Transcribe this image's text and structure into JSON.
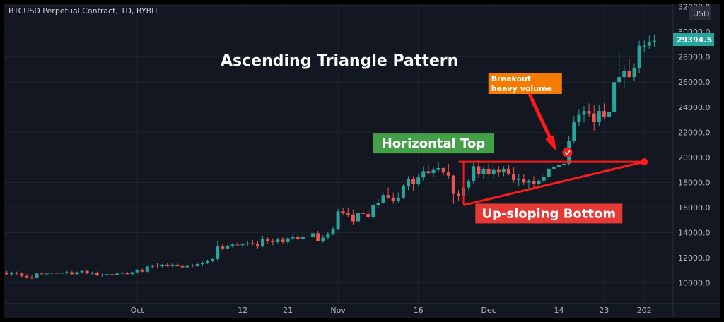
{
  "header": {
    "symbol": "BTCUSD Perpetual Contract, 1D, BYBIT",
    "currency": "USD"
  },
  "price_badge": "29394.5",
  "chart_data": {
    "type": "candlestick",
    "title": "Ascending Triangle Pattern",
    "x_ticks": [
      {
        "i": 26,
        "label": "Oct"
      },
      {
        "i": 47,
        "label": "12"
      },
      {
        "i": 56,
        "label": "21"
      },
      {
        "i": 66,
        "label": "Nov"
      },
      {
        "i": 82,
        "label": "16"
      },
      {
        "i": 96,
        "label": "Dec"
      },
      {
        "i": 110,
        "label": "14"
      },
      {
        "i": 119,
        "label": "23"
      },
      {
        "i": 127,
        "label": "202"
      }
    ],
    "y_ticks": [
      10000,
      12000,
      14000,
      16000,
      18000,
      20000,
      22000,
      24000,
      26000,
      28000,
      30000,
      32000
    ],
    "y_tick_labels": [
      "10000.0",
      "12000.0",
      "14000.0",
      "16000.0",
      "18000.0",
      "20000.0",
      "22000.0",
      "24000.0",
      "26000.0",
      "28000.0",
      "30000.0",
      "32000.0"
    ],
    "ylim": [
      8350,
      32200
    ],
    "up_color": "#26a69a",
    "down_color": "#ef5350",
    "ohlc": [
      [
        10800,
        10950,
        10650,
        10700
      ],
      [
        10700,
        10900,
        10550,
        10800
      ],
      [
        10800,
        10900,
        10600,
        10750
      ],
      [
        10750,
        10850,
        10450,
        10550
      ],
      [
        10550,
        10700,
        10350,
        10450
      ],
      [
        10450,
        10600,
        10300,
        10400
      ],
      [
        10400,
        10800,
        10350,
        10750
      ],
      [
        10750,
        10900,
        10600,
        10700
      ],
      [
        10700,
        10850,
        10550,
        10750
      ],
      [
        10750,
        10900,
        10650,
        10800
      ],
      [
        10800,
        10950,
        10650,
        10750
      ],
      [
        10750,
        10900,
        10600,
        10800
      ],
      [
        10800,
        10950,
        10700,
        10850
      ],
      [
        10850,
        10950,
        10650,
        10700
      ],
      [
        10700,
        10900,
        10600,
        10850
      ],
      [
        10850,
        11050,
        10750,
        10950
      ],
      [
        10950,
        11000,
        10700,
        10750
      ],
      [
        10750,
        10900,
        10600,
        10800
      ],
      [
        10800,
        10900,
        10550,
        10600
      ],
      [
        10600,
        10750,
        10500,
        10650
      ],
      [
        10650,
        10800,
        10550,
        10700
      ],
      [
        10700,
        10850,
        10600,
        10650
      ],
      [
        10650,
        10850,
        10550,
        10750
      ],
      [
        10750,
        10900,
        10650,
        10800
      ],
      [
        10800,
        10900,
        10650,
        10700
      ],
      [
        10700,
        10900,
        10600,
        10850
      ],
      [
        10850,
        11100,
        10750,
        11000
      ],
      [
        11000,
        11150,
        10850,
        10900
      ],
      [
        10900,
        11400,
        10850,
        11300
      ],
      [
        11300,
        11450,
        11150,
        11400
      ],
      [
        11400,
        11600,
        11200,
        11350
      ],
      [
        11350,
        11500,
        11200,
        11450
      ],
      [
        11450,
        11600,
        11300,
        11400
      ],
      [
        11400,
        11550,
        11250,
        11450
      ],
      [
        11450,
        11600,
        11300,
        11350
      ],
      [
        11350,
        11450,
        11150,
        11250
      ],
      [
        11250,
        11450,
        11200,
        11400
      ],
      [
        11400,
        11500,
        11250,
        11350
      ],
      [
        11350,
        11550,
        11300,
        11500
      ],
      [
        11500,
        11700,
        11400,
        11600
      ],
      [
        11600,
        11850,
        11500,
        11750
      ],
      [
        11750,
        12000,
        11650,
        11900
      ],
      [
        11900,
        13300,
        11800,
        12900
      ],
      [
        12900,
        13100,
        12600,
        12750
      ],
      [
        12750,
        13050,
        12650,
        12950
      ],
      [
        12950,
        13200,
        12800,
        13050
      ],
      [
        13050,
        13250,
        12900,
        13000
      ],
      [
        13000,
        13200,
        12850,
        13100
      ],
      [
        13100,
        13300,
        12950,
        13150
      ],
      [
        13150,
        13400,
        13000,
        13100
      ],
      [
        13100,
        13300,
        12700,
        12900
      ],
      [
        12900,
        13750,
        12850,
        13500
      ],
      [
        13500,
        13700,
        13150,
        13300
      ],
      [
        13300,
        13550,
        13000,
        13250
      ],
      [
        13250,
        13600,
        13100,
        13450
      ],
      [
        13450,
        13650,
        13100,
        13250
      ],
      [
        13250,
        13700,
        13050,
        13550
      ],
      [
        13550,
        13900,
        13400,
        13650
      ],
      [
        13650,
        13800,
        13400,
        13500
      ],
      [
        13500,
        13800,
        13300,
        13700
      ],
      [
        13700,
        14000,
        13500,
        13650
      ],
      [
        13650,
        14100,
        13550,
        13950
      ],
      [
        13950,
        14150,
        13500,
        13300
      ],
      [
        13300,
        13800,
        13200,
        13600
      ],
      [
        13600,
        14100,
        13450,
        13900
      ],
      [
        13900,
        14500,
        13800,
        14300
      ],
      [
        14300,
        15900,
        14200,
        15700
      ],
      [
        15700,
        15950,
        15400,
        15600
      ],
      [
        15600,
        16000,
        15250,
        15450
      ],
      [
        15450,
        15850,
        14600,
        14900
      ],
      [
        14900,
        15800,
        14700,
        15600
      ],
      [
        15600,
        15900,
        15300,
        15500
      ],
      [
        15500,
        15850,
        15100,
        15250
      ],
      [
        15250,
        16350,
        15100,
        16200
      ],
      [
        16200,
        16700,
        15900,
        16400
      ],
      [
        16400,
        17200,
        16300,
        17000
      ],
      [
        17000,
        17600,
        16700,
        16800
      ],
      [
        16800,
        17200,
        16300,
        16550
      ],
      [
        16550,
        17200,
        16350,
        16800
      ],
      [
        16800,
        17850,
        16700,
        17700
      ],
      [
        17700,
        18500,
        17400,
        18300
      ],
      [
        18300,
        18500,
        17300,
        17900
      ],
      [
        17900,
        18700,
        17700,
        18400
      ],
      [
        18400,
        19300,
        18100,
        18900
      ],
      [
        18900,
        19400,
        18600,
        18750
      ],
      [
        18750,
        19250,
        18400,
        19000
      ],
      [
        19000,
        19600,
        18800,
        19150
      ],
      [
        19150,
        19200,
        18600,
        18800
      ],
      [
        18800,
        19500,
        18300,
        18550
      ],
      [
        18550,
        18600,
        16300,
        17100
      ],
      [
        17100,
        17400,
        16500,
        16900
      ],
      [
        16900,
        17800,
        16700,
        17600
      ],
      [
        17600,
        18300,
        17400,
        18100
      ],
      [
        18100,
        19700,
        17900,
        19300
      ],
      [
        19300,
        19800,
        18400,
        18700
      ],
      [
        18700,
        19300,
        18300,
        19100
      ],
      [
        19100,
        19500,
        18600,
        18700
      ],
      [
        18700,
        19200,
        18300,
        19000
      ],
      [
        19000,
        19300,
        18500,
        18800
      ],
      [
        18800,
        19300,
        18500,
        19100
      ],
      [
        19100,
        19400,
        18600,
        18700
      ],
      [
        18700,
        19200,
        18000,
        18200
      ],
      [
        18200,
        18700,
        17700,
        18300
      ],
      [
        18300,
        18700,
        17800,
        18000
      ],
      [
        18000,
        18300,
        17500,
        18100
      ],
      [
        18100,
        18500,
        17600,
        17900
      ],
      [
        17900,
        18300,
        17600,
        18150
      ],
      [
        18150,
        18600,
        18000,
        18450
      ],
      [
        18450,
        19300,
        18300,
        19100
      ],
      [
        19100,
        19400,
        18900,
        19250
      ],
      [
        19250,
        19600,
        19000,
        19400
      ],
      [
        19400,
        19650,
        19200,
        19500
      ],
      [
        19500,
        21700,
        19350,
        21300
      ],
      [
        21300,
        23300,
        21100,
        22800
      ],
      [
        22800,
        23800,
        22500,
        23400
      ],
      [
        23400,
        24100,
        22800,
        23700
      ],
      [
        23700,
        24300,
        23200,
        23500
      ],
      [
        23500,
        24200,
        22100,
        22800
      ],
      [
        22800,
        24200,
        22500,
        23700
      ],
      [
        23700,
        24300,
        23100,
        23200
      ],
      [
        23200,
        23700,
        22600,
        23600
      ],
      [
        23600,
        26300,
        23400,
        26000
      ],
      [
        26000,
        28500,
        25600,
        26400
      ],
      [
        26400,
        27400,
        25500,
        26900
      ],
      [
        26900,
        27900,
        26300,
        26400
      ],
      [
        26400,
        27500,
        26100,
        27100
      ],
      [
        27100,
        29300,
        26700,
        28900
      ],
      [
        28900,
        29300,
        28400,
        28900
      ],
      [
        28900,
        29700,
        28600,
        29200
      ],
      [
        29200,
        29800,
        28800,
        29300
      ]
    ],
    "annotations": {
      "top_label": "Horizontal Top",
      "bottom_label": "Up-sloping Bottom",
      "breakout_label_line1": "Breakout",
      "breakout_label_line2": "heavy volume",
      "resistance_level": 19650,
      "resistance_start_index": 90,
      "resistance_end_index": 127,
      "support_start_index": 91,
      "support_start_price": 16200,
      "support_end_index": 127,
      "support_end_price": 19650,
      "breakout_index": 110,
      "top_color": "#43a047",
      "bottom_color": "#e53935",
      "breakout_color": "#f57c00",
      "line_color": "#ff1a1a"
    }
  }
}
